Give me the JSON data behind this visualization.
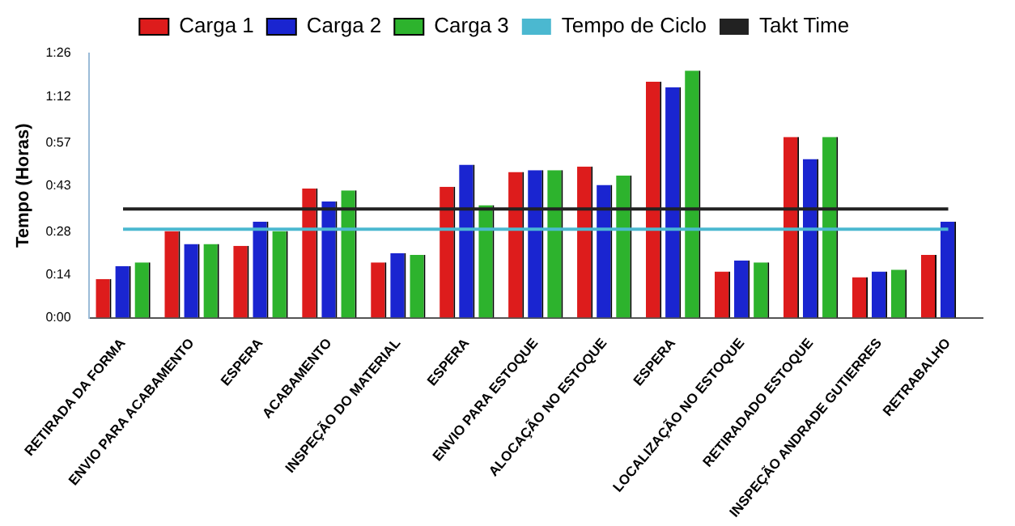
{
  "chart_data": {
    "type": "bar",
    "ylabel": "Tempo (Horas)",
    "categories": [
      "RETIRADA DA FORMA",
      "ENVIO PARA ACABAMENTO",
      "ESPERA",
      "ACABAMENTO",
      "INSPEÇÃO DO MATERIAL",
      "ESPERA",
      "ENVIO PARA ESTOQUE",
      "ALOCAÇÃO NO ESTOQUE",
      "ESPERA",
      "LOCALIZAÇÃO NO ESTOQUE",
      "RETIRADADO ESTOQUE",
      "INSPEÇÃO ANDRADE GUTIERRES",
      "RETRABALHO"
    ],
    "series": [
      {
        "name": "Carga 1",
        "color": "#dd1c1c",
        "values": [
          0.21,
          0.47,
          0.39,
          0.7,
          0.3,
          0.71,
          0.79,
          0.82,
          1.28,
          0.25,
          0.98,
          0.22,
          0.34
        ]
      },
      {
        "name": "Carga 2",
        "color": "#1a25d0",
        "values": [
          0.28,
          0.4,
          0.52,
          0.63,
          0.35,
          0.83,
          0.8,
          0.72,
          1.25,
          0.31,
          0.86,
          0.25,
          0.52
        ]
      },
      {
        "name": "Carga 3",
        "color": "#2db32d",
        "values": [
          0.3,
          0.4,
          0.47,
          0.69,
          0.34,
          0.61,
          0.8,
          0.77,
          1.34,
          0.3,
          0.98,
          0.26,
          null
        ]
      },
      {
        "name": "Tempo de Ciclo",
        "type": "line",
        "color": "#4bb8d0",
        "values": [
          0.48,
          0.48,
          0.48,
          0.48,
          0.48,
          0.48,
          0.48,
          0.48,
          0.48,
          0.48,
          0.48,
          0.48,
          0.48
        ]
      },
      {
        "name": "Takt Time",
        "type": "line",
        "color": "#222222",
        "values": [
          0.59,
          0.59,
          0.59,
          0.59,
          0.59,
          0.59,
          0.59,
          0.59,
          0.59,
          0.59,
          0.59,
          0.59,
          0.59
        ]
      }
    ],
    "ylim": [
      0,
      1.4333
    ],
    "yticks": [
      {
        "value": 0,
        "label": "0:00"
      },
      {
        "value": 0.2333,
        "label": "0:14"
      },
      {
        "value": 0.4667,
        "label": "0:28"
      },
      {
        "value": 0.7167,
        "label": "0:43"
      },
      {
        "value": 0.95,
        "label": "0:57"
      },
      {
        "value": 1.2,
        "label": "1:12"
      },
      {
        "value": 1.4333,
        "label": "1:26"
      }
    ],
    "grid": false,
    "legend": "top",
    "marker": "none"
  }
}
